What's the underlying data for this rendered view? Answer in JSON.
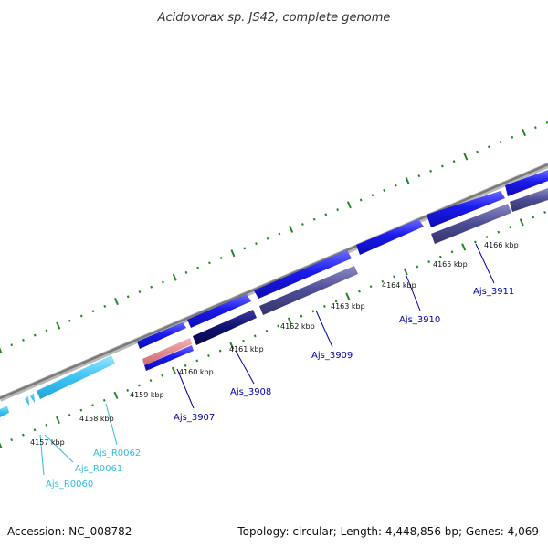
{
  "title": "Acidovorax sp. JS42, complete genome",
  "footer": {
    "accession": "Accession: NC_008782",
    "summary": "Topology: circular; Length: 4,448,856 bp; Genes: 4,069"
  },
  "colors": {
    "forward_cds": "#1a1aee",
    "reverse_cds": "#4c4c94",
    "reverse_dark": "#101070",
    "rna": "#3dc4f4",
    "pink": "#e07a80",
    "backbone": "#8c8c8c",
    "ticks": "#228822"
  },
  "kbp_labels": [
    "4157 kbp",
    "4158 kbp",
    "4159 kbp",
    "4160 kbp",
    "4161 kbp",
    "4162 kbp",
    "4163 kbp",
    "4164 kbp",
    "4165 kbp",
    "4166 kbp"
  ],
  "gene_labels": [
    "Ajs_3907",
    "Ajs_3908",
    "Ajs_3909",
    "Ajs_3910",
    "Ajs_3911"
  ],
  "rna_labels": [
    "Ajs_R0062",
    "Ajs_R0061",
    "Ajs_R0060"
  ]
}
